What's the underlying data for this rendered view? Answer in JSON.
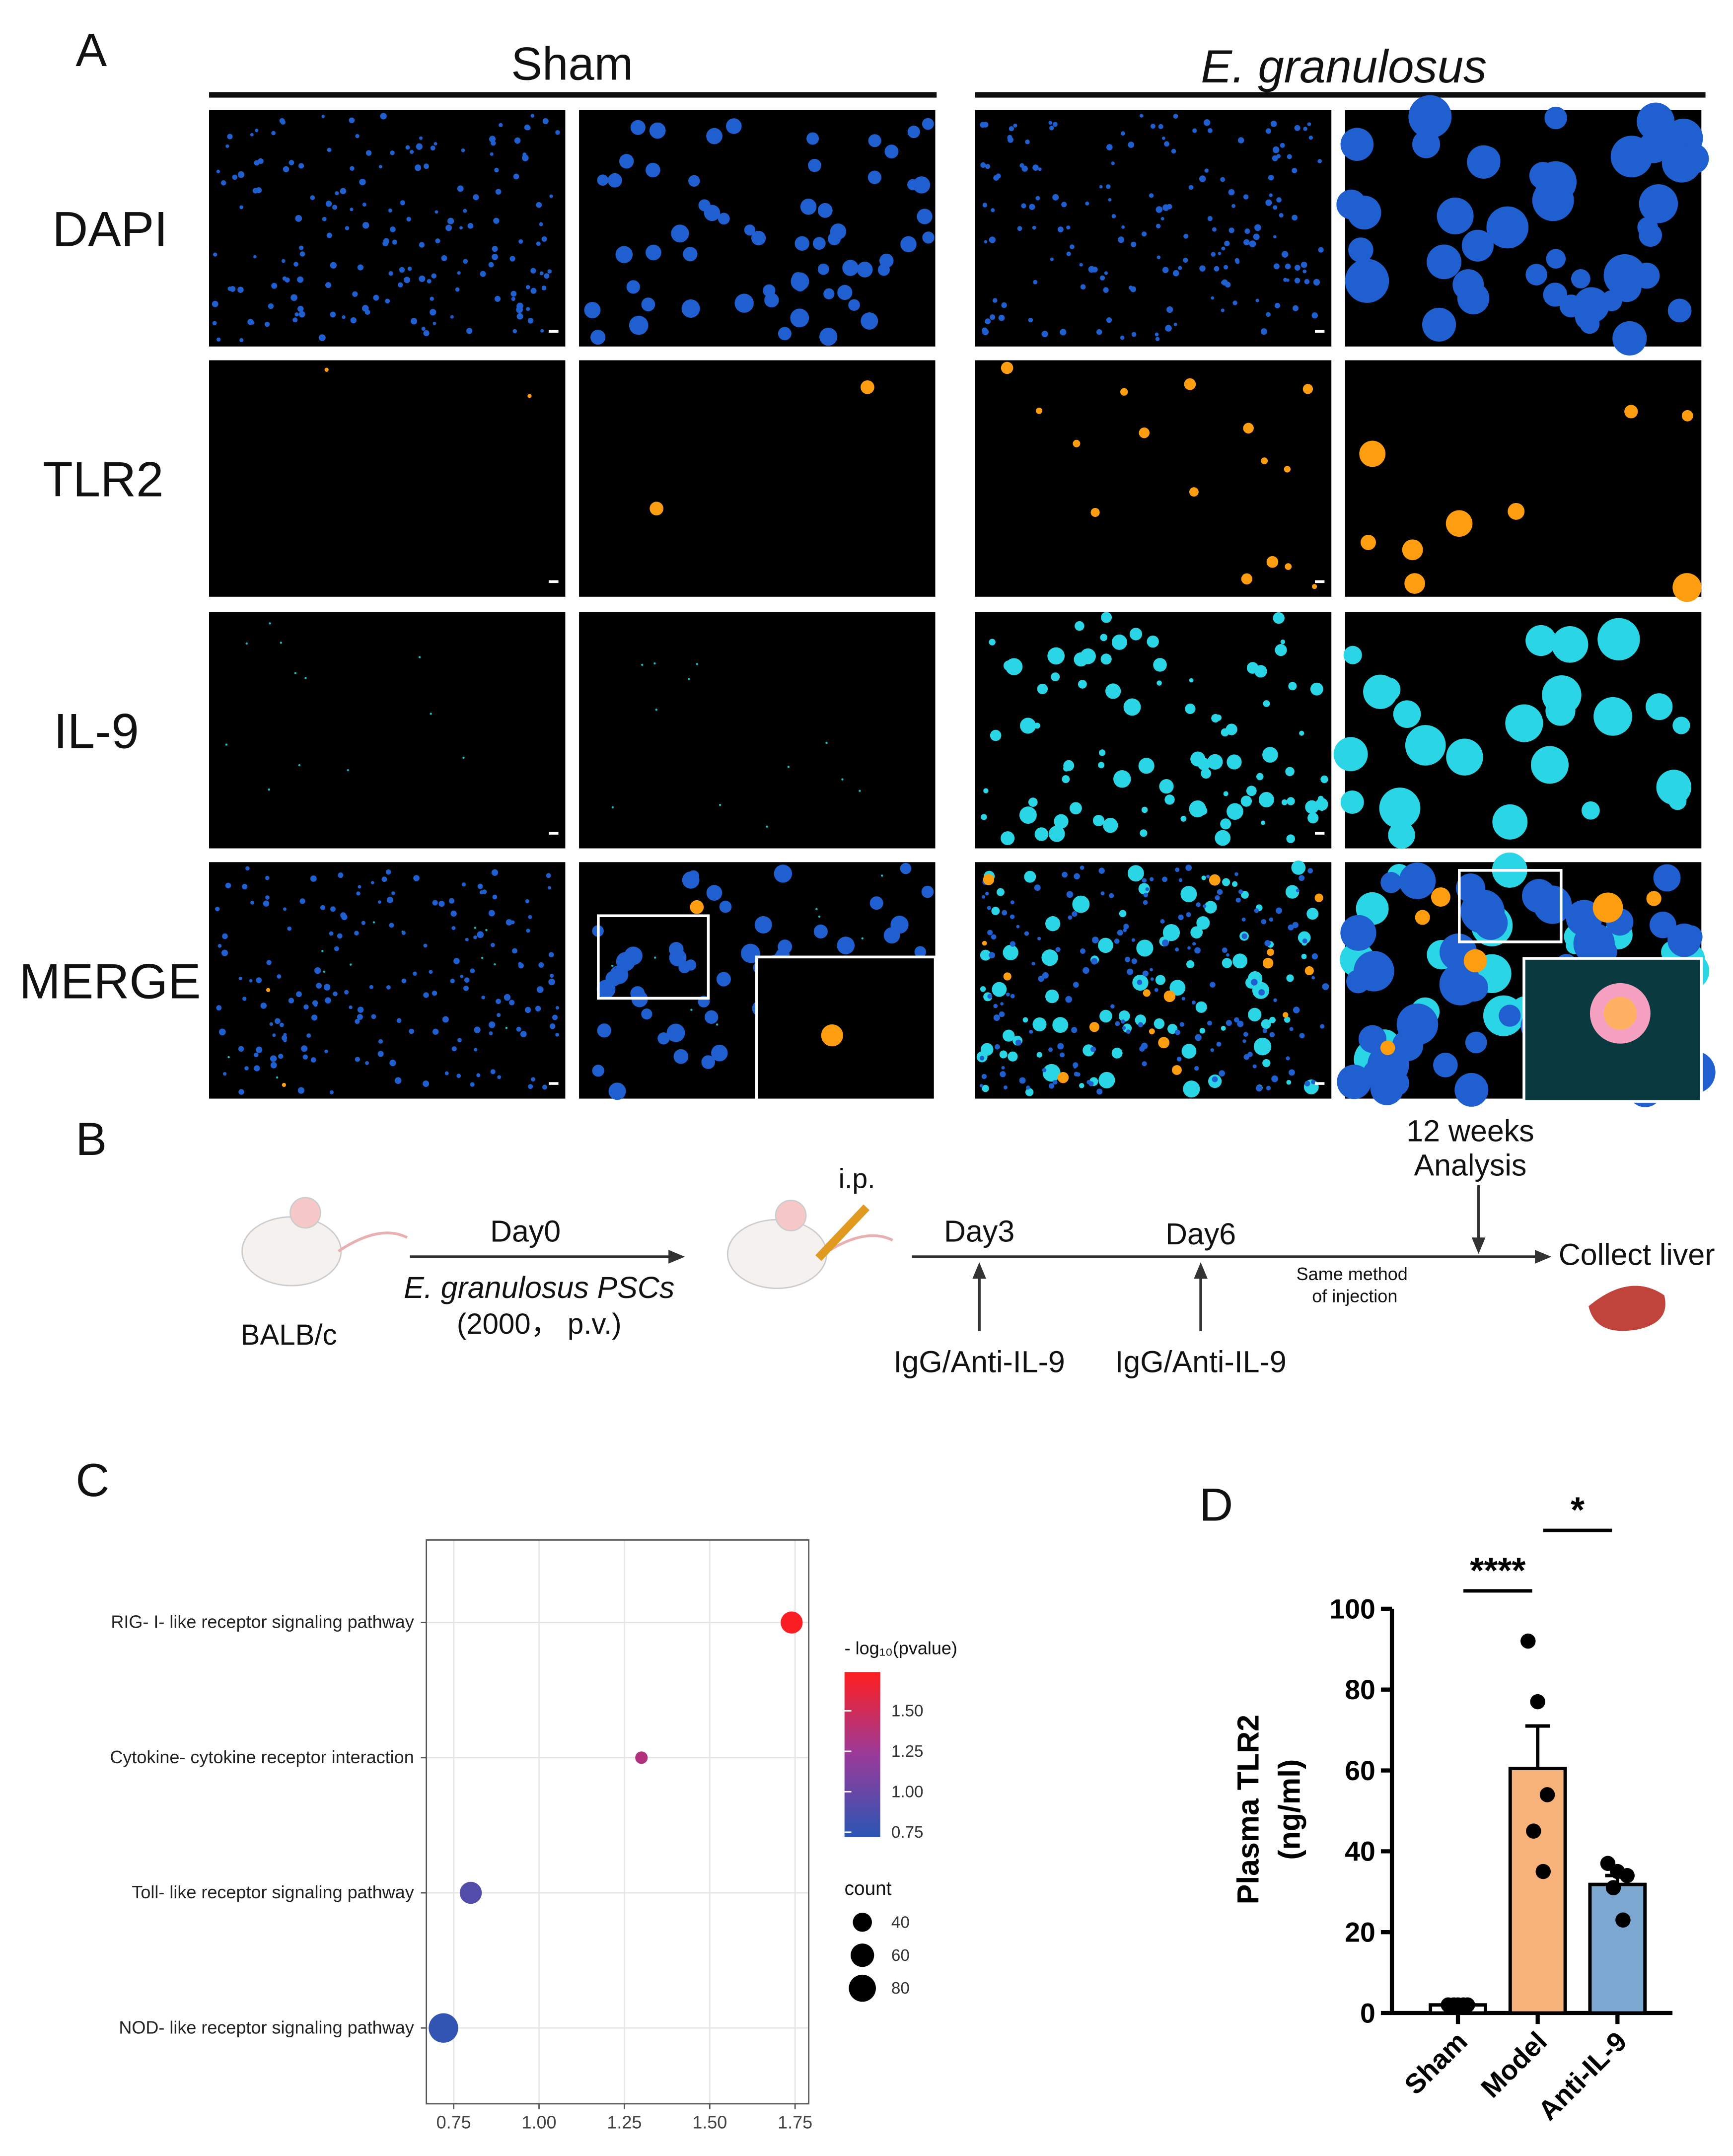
{
  "panel_a": {
    "letter": "A",
    "groups": [
      "Sham",
      "E. granulosus"
    ],
    "rows": [
      "DAPI",
      "TLR2",
      "IL-9",
      "MERGE"
    ]
  },
  "panel_b": {
    "letter": "B",
    "mouse_label": "BALB/c",
    "day0": "Day0",
    "pscs": "E. granulosus PSCs",
    "dose": "(2000， p.v.)",
    "route": "i.p.",
    "day3": "Day3",
    "day6": "Day6",
    "treat3": "IgG/Anti-IL-9",
    "treat6": "IgG/Anti-IL-9",
    "weeks": "12 weeks",
    "analysis": "Analysis",
    "same1": "Same method",
    "same2": "of injection",
    "collect": "Collect liver"
  },
  "chart_data": [
    {
      "type": "dotplot",
      "letter": "C",
      "categories": [
        "RIG- I- like receptor signaling pathway",
        "Cytokine- cytokine receptor interaction",
        "Toll- like receptor signaling pathway",
        "NOD- like receptor signaling pathway"
      ],
      "x": [
        1.74,
        1.3,
        0.8,
        0.72
      ],
      "color_values": [
        1.72,
        1.35,
        0.9,
        0.75
      ],
      "counts": [
        53,
        17,
        53,
        95
      ],
      "xlim": [
        0.67,
        1.79
      ],
      "xticks": [
        0.75,
        {
          "value": 1,
          "label": "1.00"
        },
        1.25,
        {
          "value": 1.5,
          "label": "1.50"
        },
        1.75
      ],
      "grid": true,
      "color_title": "- log₁₀(pvalue)",
      "clim": [
        0.72,
        1.74
      ],
      "colormap": [
        "#2b56b4",
        "#9a3a9a",
        "#ff1e1e"
      ],
      "cticks": [
        0.75,
        {
          "value": 1,
          "label": "1.00"
        },
        1.25,
        {
          "value": 1.5,
          "label": "1.50"
        }
      ],
      "size_title": "count",
      "size_legend": [
        40,
        60,
        80
      ]
    },
    {
      "type": "bar",
      "letter": "D",
      "categories": [
        "Sham",
        "Model",
        "Anti-IL-9"
      ],
      "values": [
        2,
        60.5,
        31.8
      ],
      "errors": [
        0.3,
        10.5,
        2.2
      ],
      "colors": [
        "#ffffff",
        "#f7b27a",
        "#7ba7d0"
      ],
      "points": [
        [
          2,
          2,
          2,
          2,
          2
        ],
        [
          92,
          77,
          54,
          45,
          35
        ],
        [
          37,
          35,
          34,
          31,
          23
        ]
      ],
      "ylabel": [
        "Plasma TLR2",
        "(ng/ml)"
      ],
      "ylim": [
        0,
        100
      ],
      "yticks": [
        0,
        20,
        40,
        60,
        80,
        100
      ],
      "significance": [
        {
          "from": 0,
          "to": 1,
          "label": "****"
        },
        {
          "from": 1,
          "to": 2,
          "label": "*"
        }
      ]
    }
  ]
}
